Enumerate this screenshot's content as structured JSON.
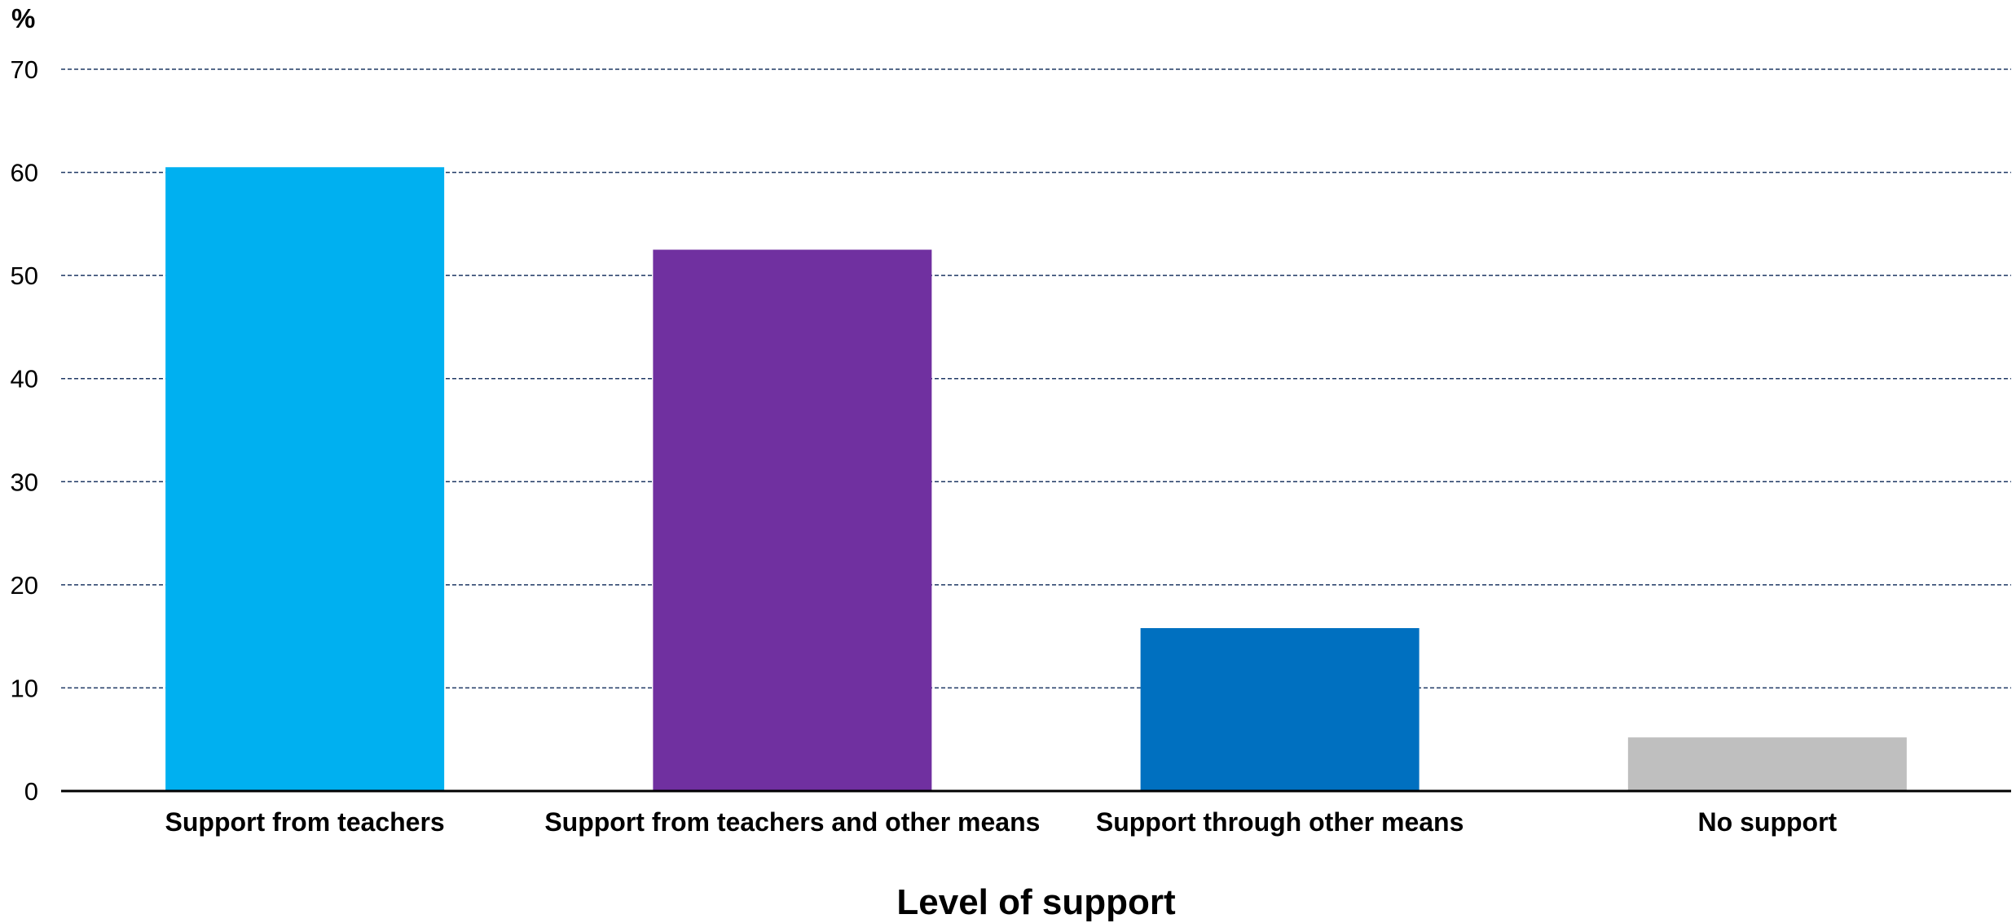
{
  "chart_data": {
    "type": "bar",
    "categories": [
      "Support from teachers",
      "Support from teachers and other means",
      "Support through other means",
      "No support"
    ],
    "values": [
      60.5,
      52.5,
      15.8,
      5.2
    ],
    "colors": [
      "#00b0f0",
      "#7030a0",
      "#0070c0",
      "#bfbfbf"
    ],
    "ylabel": "%",
    "xlabel": "Level of support",
    "ylim": [
      0,
      70
    ],
    "yticks": [
      0,
      10,
      20,
      30,
      40,
      50,
      60,
      70
    ],
    "grid": true,
    "grid_color": "#1f3864",
    "legend": "none"
  }
}
